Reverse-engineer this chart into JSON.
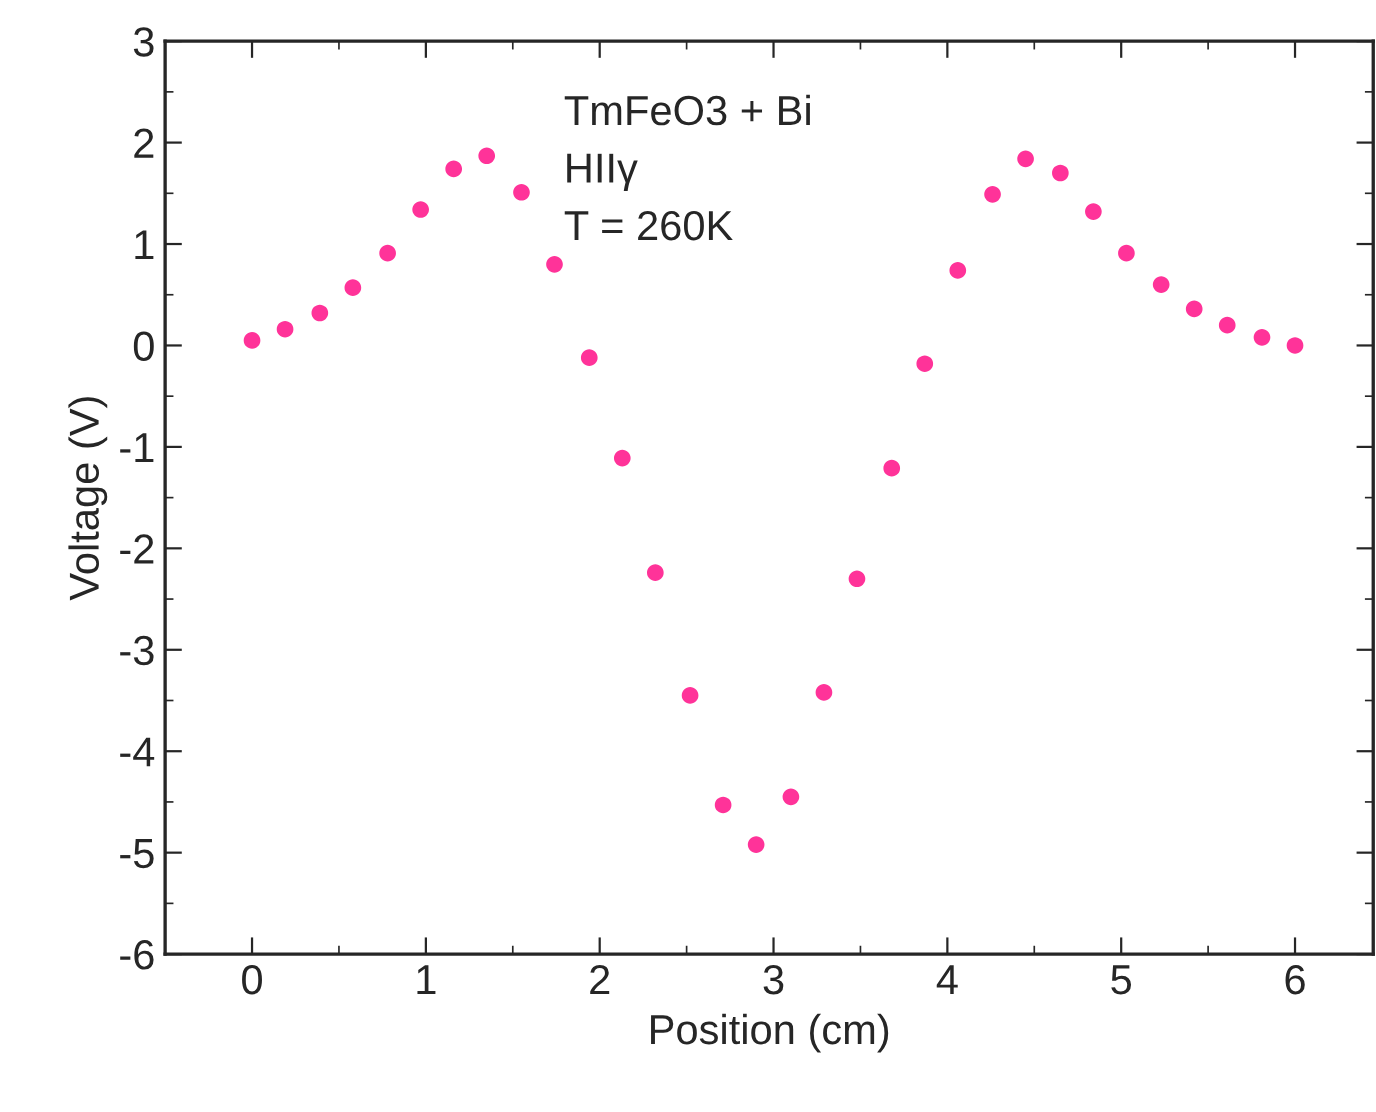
{
  "chart_data": {
    "type": "scatter",
    "xlabel": "Position (cm)",
    "ylabel": "Voltage (V)",
    "annotations": [
      "TmFeO3 + Bi",
      "HIIγ",
      "T = 260K"
    ],
    "x": [
      0,
      0.19,
      0.39,
      0.58,
      0.78,
      0.97,
      1.16,
      1.35,
      1.55,
      1.74,
      1.94,
      2.13,
      2.32,
      2.52,
      2.71,
      2.9,
      3.1,
      3.29,
      3.48,
      3.68,
      3.87,
      4.06,
      4.26,
      4.45,
      4.65,
      4.84,
      5.03,
      5.23,
      5.42,
      5.61,
      5.81,
      6.0
    ],
    "series": [
      {
        "color": "#ff3399",
        "values": [
          0.05,
          0.16,
          0.32,
          0.57,
          0.91,
          1.34,
          1.74,
          1.87,
          1.51,
          0.8,
          -0.12,
          -1.11,
          -2.24,
          -3.45,
          -4.53,
          -4.92,
          -4.45,
          -3.42,
          -2.3,
          -1.21,
          -0.18,
          0.74,
          1.49,
          1.84,
          1.7,
          1.32,
          0.91,
          0.6,
          0.36,
          0.2,
          0.08,
          0.0
        ]
      }
    ],
    "xlim": [
      -0.5,
      6.45
    ],
    "ylim": [
      -6,
      3
    ],
    "xticks": [
      0,
      1,
      2,
      3,
      4,
      5,
      6
    ],
    "yticks": [
      -6,
      -5,
      -4,
      -3,
      -2,
      -1,
      0,
      1,
      2,
      3
    ],
    "marker": "circle",
    "grid": false,
    "legend": false
  }
}
